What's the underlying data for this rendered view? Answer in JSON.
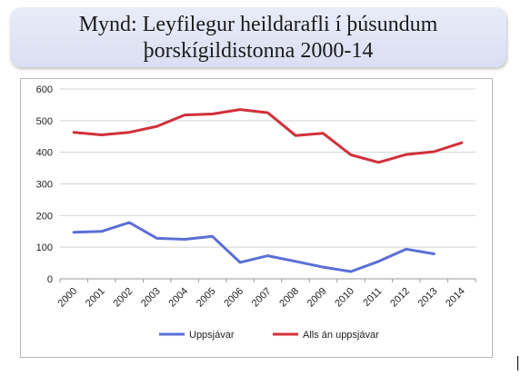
{
  "title": {
    "line1": "Mynd: Leyfilegur heildarafli í þúsundum",
    "line2": "þorskígildistonna 2000-14"
  },
  "chart_data": {
    "type": "line",
    "x": [
      "2000",
      "2001",
      "2002",
      "2003",
      "2004",
      "2005",
      "2006",
      "2007",
      "2008",
      "2009",
      "2010",
      "2011",
      "2012",
      "2013",
      "2014"
    ],
    "ylim": [
      0,
      600
    ],
    "yticks": [
      "0",
      "100",
      "200",
      "300",
      "400",
      "500",
      "600"
    ],
    "grid": true,
    "legend_position": "bottom",
    "series": [
      {
        "name": "Uppsjávar",
        "color": "#5b6fd6",
        "values": [
          147,
          150,
          178,
          128,
          125,
          134,
          52,
          73,
          55,
          37,
          23,
          55,
          94,
          79,
          null
        ]
      },
      {
        "name": "Alls án uppsjávar",
        "color": "#d1303b",
        "values": [
          463,
          455,
          463,
          482,
          518,
          521,
          535,
          525,
          453,
          460,
          392,
          368,
          393,
          402,
          430
        ]
      }
    ]
  }
}
